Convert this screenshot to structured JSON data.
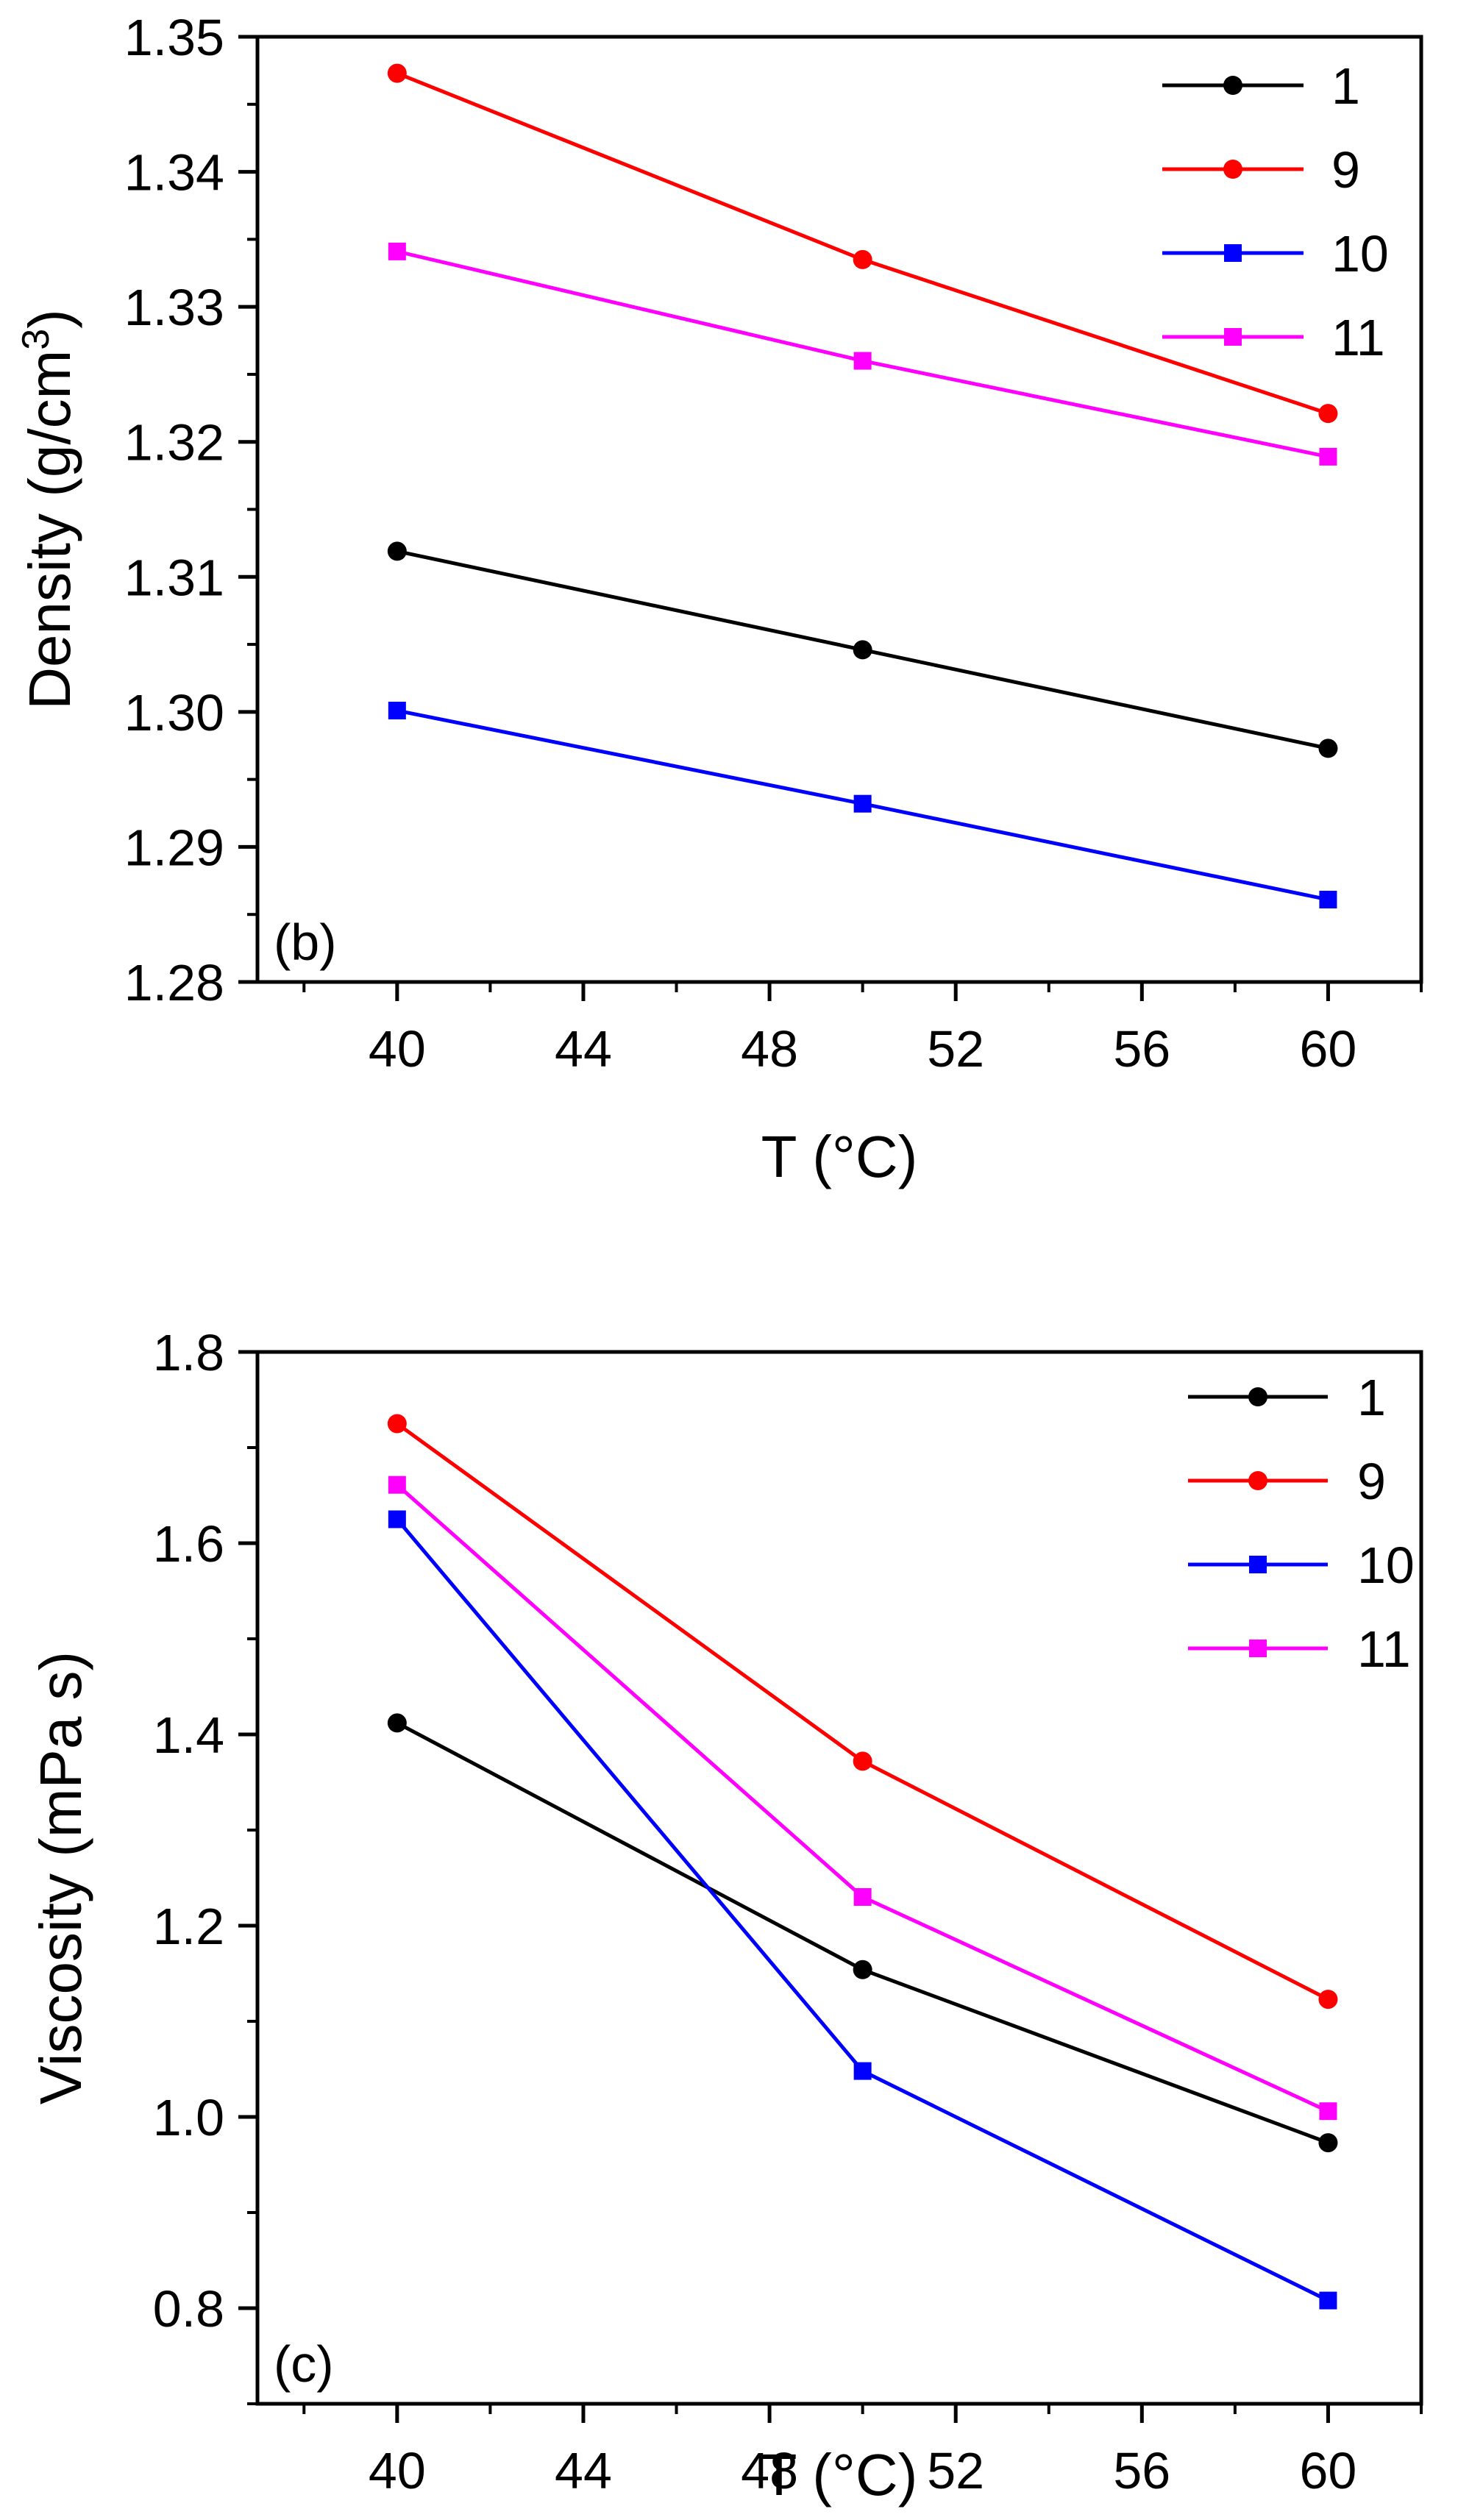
{
  "chart_data": [
    {
      "type": "line",
      "panel_tag": "(b)",
      "xlabel": "T (°C)",
      "ylabel": "Density (g/cm",
      "ylabel_sup": "3",
      "ylabel_end": ")",
      "xlim": [
        37,
        62
      ],
      "ylim": [
        1.28,
        1.35
      ],
      "xticks": [
        40,
        44,
        48,
        52,
        56,
        60
      ],
      "xtick_labels": [
        "40",
        "44",
        "48",
        "52",
        "56",
        "60"
      ],
      "yticks": [
        1.28,
        1.29,
        1.3,
        1.31,
        1.32,
        1.33,
        1.34,
        1.35
      ],
      "ytick_labels": [
        "1.28",
        "1.29",
        "1.30",
        "1.31",
        "1.32",
        "1.33",
        "1.34",
        "1.35"
      ],
      "grid": false,
      "legend_position": "top-right",
      "x": [
        40,
        50,
        60
      ],
      "series": [
        {
          "name": "1",
          "color": "#000000",
          "marker": "circle",
          "values": [
            1.3119,
            1.3046,
            1.2973
          ]
        },
        {
          "name": "9",
          "color": "#ff0000",
          "marker": "circle",
          "values": [
            1.3473,
            1.3335,
            1.3221
          ]
        },
        {
          "name": "10",
          "color": "#0000ff",
          "marker": "square",
          "values": [
            1.3001,
            1.2932,
            1.2861
          ]
        },
        {
          "name": "11",
          "color": "#ff00ff",
          "marker": "square",
          "values": [
            1.3341,
            1.326,
            1.3189
          ]
        }
      ]
    },
    {
      "type": "line",
      "panel_tag": "(c)",
      "xlabel": "T (°C)",
      "ylabel": "Viscosity (mPa s)",
      "ylabel_sup": "",
      "ylabel_end": "",
      "xlim": [
        37,
        62
      ],
      "ylim": [
        0.7,
        1.8
      ],
      "xticks": [
        40,
        44,
        48,
        52,
        56,
        60
      ],
      "xtick_labels": [
        "40",
        "44",
        "48",
        "52",
        "56",
        "60"
      ],
      "yticks": [
        0.8,
        1.0,
        1.2,
        1.4,
        1.6,
        1.8
      ],
      "ytick_labels": [
        "0.8",
        "1.0",
        "1.2",
        "1.4",
        "1.6",
        "1.8"
      ],
      "grid": false,
      "legend_position": "top-right",
      "x": [
        40,
        50,
        60
      ],
      "series": [
        {
          "name": "1",
          "color": "#000000",
          "marker": "circle",
          "values": [
            1.412,
            1.154,
            0.973
          ]
        },
        {
          "name": "9",
          "color": "#ff0000",
          "marker": "circle",
          "values": [
            1.725,
            1.372,
            1.123
          ]
        },
        {
          "name": "10",
          "color": "#0000ff",
          "marker": "square",
          "values": [
            1.625,
            1.048,
            0.808
          ]
        },
        {
          "name": "11",
          "color": "#ff00ff",
          "marker": "square",
          "values": [
            1.661,
            1.23,
            1.006
          ]
        }
      ]
    }
  ]
}
